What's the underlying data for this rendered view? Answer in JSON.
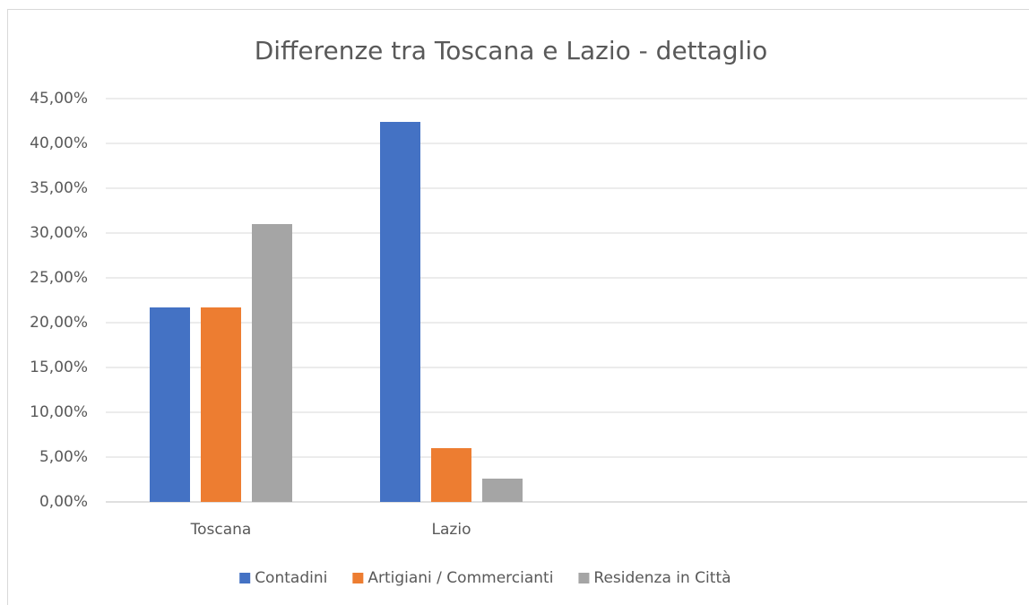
{
  "chart_data": {
    "type": "bar",
    "title": "Differenze tra Toscana e Lazio - dettaglio",
    "categories": [
      "Toscana",
      "Lazio",
      null,
      null
    ],
    "series": [
      {
        "name": "Contadini",
        "color": "#4472c4",
        "values": [
          21.7,
          42.4,
          null,
          null
        ]
      },
      {
        "name": "Artigiani / Commercianti",
        "color": "#ed7d31",
        "values": [
          21.7,
          6.0,
          null,
          null
        ]
      },
      {
        "name": "Residenza in Città",
        "color": "#a5a5a5",
        "values": [
          31.0,
          2.6,
          null,
          null
        ]
      }
    ],
    "ylim": [
      0,
      45
    ],
    "yticks": [
      {
        "value": 0,
        "label": "0,00%"
      },
      {
        "value": 5,
        "label": "5,00%"
      },
      {
        "value": 10,
        "label": "10,00%"
      },
      {
        "value": 15,
        "label": "15,00%"
      },
      {
        "value": 20,
        "label": "20,00%"
      },
      {
        "value": 25,
        "label": "25,00%"
      },
      {
        "value": 30,
        "label": "30,00%"
      },
      {
        "value": 35,
        "label": "35,00%"
      },
      {
        "value": 40,
        "label": "40,00%"
      },
      {
        "value": 45,
        "label": "45,00%"
      }
    ],
    "grid": true,
    "legend": "bottom"
  }
}
